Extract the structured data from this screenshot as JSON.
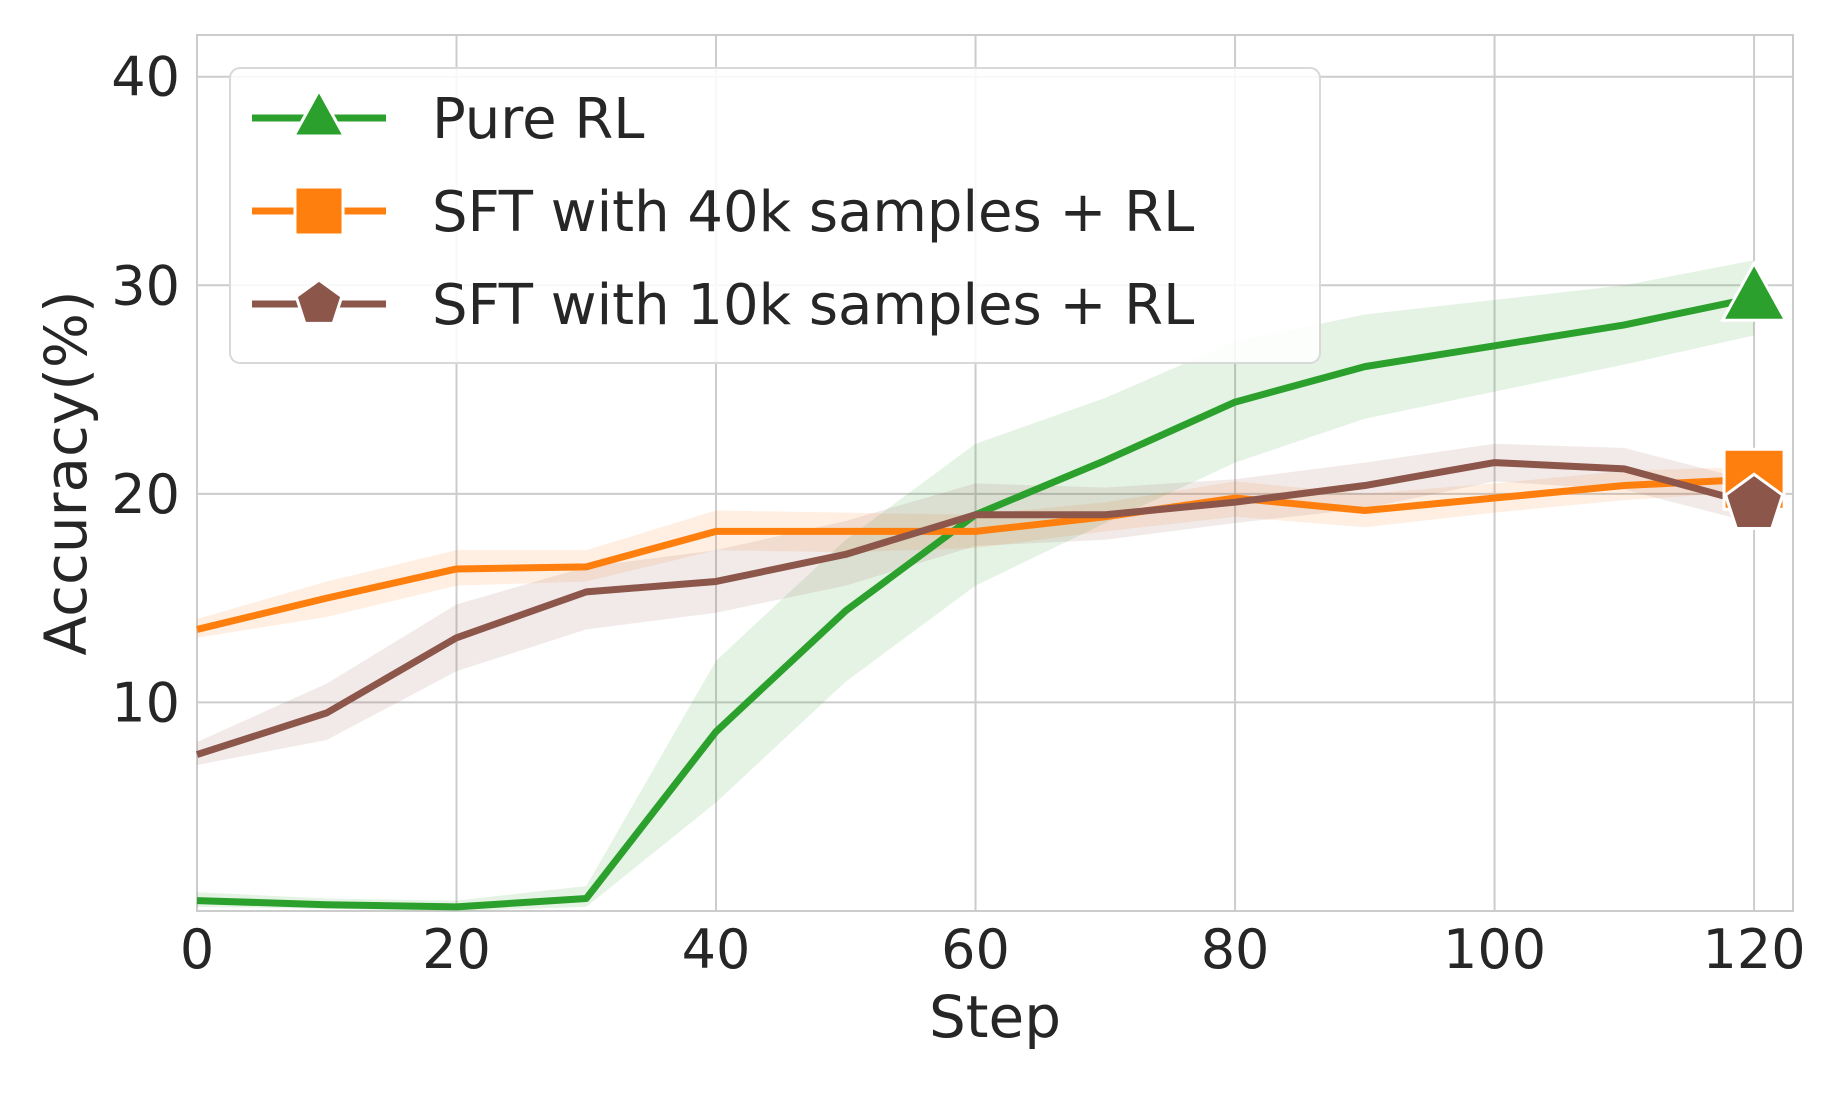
{
  "chart_data": {
    "type": "line",
    "xlabel": "Step",
    "ylabel": "Accuracy(%)",
    "xlim": [
      0,
      123
    ],
    "ylim": [
      0,
      42
    ],
    "xticks": [
      0,
      20,
      40,
      60,
      80,
      100,
      120
    ],
    "yticks": [
      10,
      20,
      30,
      40
    ],
    "grid": true,
    "legend_position": "upper-left",
    "x": [
      0,
      10,
      20,
      30,
      40,
      50,
      60,
      70,
      80,
      90,
      100,
      110,
      120
    ],
    "series": [
      {
        "name": "Pure RL",
        "color": "#2ca02c",
        "marker": "triangle",
        "values": [
          0.5,
          0.3,
          0.2,
          0.6,
          8.6,
          14.4,
          19.0,
          21.6,
          24.4,
          26.1,
          27.1,
          28.1,
          29.4
        ],
        "lower": [
          0.2,
          0.1,
          0.0,
          0.2,
          5.2,
          11.0,
          15.6,
          18.6,
          21.5,
          23.6,
          24.9,
          26.2,
          27.6
        ],
        "upper": [
          0.9,
          0.6,
          0.5,
          1.2,
          12.0,
          17.8,
          22.4,
          24.6,
          27.3,
          28.6,
          29.3,
          30.0,
          31.2
        ]
      },
      {
        "name": "SFT with 40k samples + RL",
        "color": "#ff7f0e",
        "marker": "square",
        "values": [
          13.5,
          15.0,
          16.4,
          16.5,
          18.2,
          18.2,
          18.2,
          18.9,
          19.8,
          19.2,
          19.8,
          20.4,
          20.7
        ],
        "lower": [
          13.1,
          14.1,
          15.6,
          15.8,
          17.3,
          17.2,
          17.4,
          18.2,
          18.9,
          18.4,
          19.1,
          19.7,
          20.1
        ],
        "upper": [
          14.0,
          15.8,
          17.3,
          17.3,
          19.2,
          19.1,
          19.0,
          19.6,
          20.6,
          20.0,
          20.5,
          21.1,
          21.3
        ]
      },
      {
        "name": "SFT with 10k samples + RL",
        "color": "#8c564b",
        "marker": "pentagon",
        "values": [
          7.5,
          9.5,
          13.1,
          15.3,
          15.8,
          17.1,
          19.0,
          19.0,
          19.6,
          20.4,
          21.5,
          21.2,
          19.5
        ],
        "lower": [
          7.0,
          8.2,
          11.5,
          13.5,
          14.3,
          15.6,
          17.5,
          17.8,
          18.6,
          19.3,
          20.6,
          20.2,
          18.6
        ],
        "upper": [
          8.1,
          10.9,
          14.7,
          16.5,
          17.3,
          18.7,
          20.5,
          20.3,
          20.7,
          21.5,
          22.4,
          22.2,
          20.6
        ]
      }
    ]
  }
}
